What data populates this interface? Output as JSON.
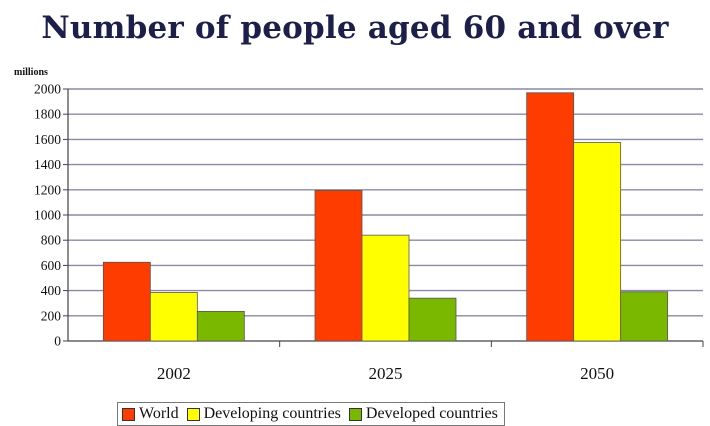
{
  "chart_data": {
    "type": "bar",
    "title": "Number of people aged 60 and over",
    "ylabel": "millions",
    "xlabel": "",
    "categories": [
      "2002",
      "2025",
      "2050"
    ],
    "series": [
      {
        "name": "World",
        "color": "#ff3c00",
        "values": [
          625,
          1195,
          1970
        ]
      },
      {
        "name": "Developing countries",
        "color": "#ffff00",
        "values": [
          385,
          840,
          1575
        ]
      },
      {
        "name": "Developed countries",
        "color": "#7ab800",
        "values": [
          235,
          340,
          390
        ]
      }
    ],
    "ylim": [
      0,
      2000
    ],
    "yticks": [
      0,
      200,
      400,
      600,
      800,
      1000,
      1200,
      1400,
      1600,
      1800,
      2000
    ],
    "grid": true,
    "legend_position": "bottom"
  }
}
